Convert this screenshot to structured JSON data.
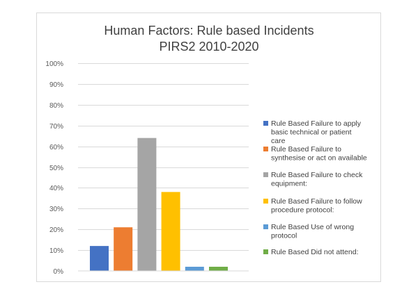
{
  "chart_data": {
    "type": "bar",
    "title": "Human Factors: Rule based Incidents",
    "subtitle": "PIRS2 2010-2020",
    "xlabel": "",
    "ylabel": "",
    "ylim": [
      0,
      1
    ],
    "yticks": [
      "0%",
      "10%",
      "20%",
      "30%",
      "40%",
      "50%",
      "60%",
      "70%",
      "80%",
      "90%",
      "100%"
    ],
    "grid": true,
    "legend_position": "right",
    "series": [
      {
        "name": "Rule Based Failure to apply basic technical or patient care",
        "values": [
          0.12
        ],
        "color": "#4472C4"
      },
      {
        "name": "Rule Based Failure to synthesise or act on available",
        "values": [
          0.21
        ],
        "color": "#ED7D31"
      },
      {
        "name": "Rule Based Failure to check equipment:",
        "values": [
          0.64
        ],
        "color": "#A5A5A5"
      },
      {
        "name": "Rule Based Failure to follow procedure protocol:",
        "values": [
          0.38
        ],
        "color": "#FFC000"
      },
      {
        "name": "Rule Based Use of wrong protocol",
        "values": [
          0.02
        ],
        "color": "#5B9BD5"
      },
      {
        "name": "Rule Based Did not attend:",
        "values": [
          0.02
        ],
        "color": "#70AD47"
      }
    ]
  }
}
